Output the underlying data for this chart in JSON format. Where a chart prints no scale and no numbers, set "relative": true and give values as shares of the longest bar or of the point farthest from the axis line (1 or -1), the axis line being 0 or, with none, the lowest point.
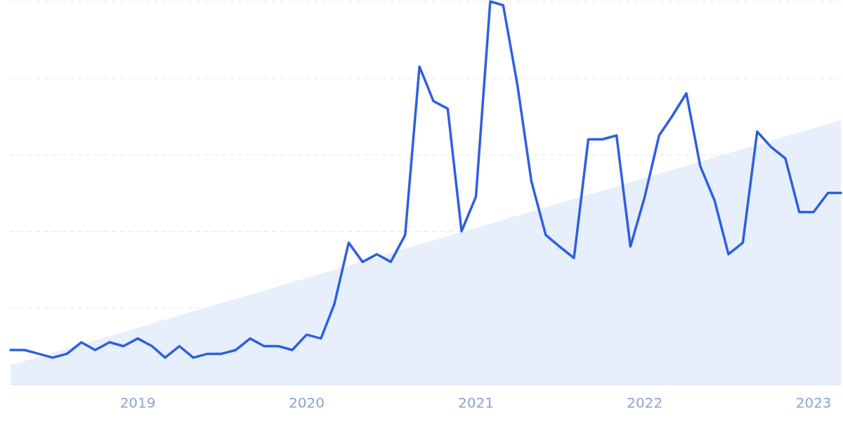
{
  "chart_data": {
    "type": "line",
    "relative": true,
    "grid": "y",
    "marker": "none",
    "line_style": "solid",
    "xlim": [
      "2018-04",
      "2023-03"
    ],
    "xticks": [
      "2019",
      "2020",
      "2021",
      "2022",
      "2023"
    ],
    "series": [
      {
        "type": "area",
        "color": "#e6effb",
        "x": [
          "2018-04",
          "2023-03"
        ],
        "values": [
          0.05,
          0.69
        ]
      },
      {
        "color": "#2f5fe0",
        "x": [
          "2018-04",
          "2018-05",
          "2018-06",
          "2018-07",
          "2018-08",
          "2018-09",
          "2018-10",
          "2018-11",
          "2018-12",
          "2019-01",
          "2019-02",
          "2019-03",
          "2019-04",
          "2019-05",
          "2019-06",
          "2019-07",
          "2019-08",
          "2019-09",
          "2019-10",
          "2019-11",
          "2019-12",
          "2020-01",
          "2020-02",
          "2020-03",
          "2020-04",
          "2020-05",
          "2020-06",
          "2020-07",
          "2020-08",
          "2020-09",
          "2020-10",
          "2020-11",
          "2020-12",
          "2021-01",
          "2021-02",
          "2021-03",
          "2021-04",
          "2021-05",
          "2021-06",
          "2021-07",
          "2021-08",
          "2021-09",
          "2021-10",
          "2021-11",
          "2021-12",
          "2022-01",
          "2022-02",
          "2022-03",
          "2022-04",
          "2022-05",
          "2022-06",
          "2022-07",
          "2022-08",
          "2022-09",
          "2022-10",
          "2022-11",
          "2022-12",
          "2023-01",
          "2023-02",
          "2023-03"
        ],
        "values": [
          0.09,
          0.09,
          0.08,
          0.07,
          0.08,
          0.11,
          0.09,
          0.11,
          0.1,
          0.12,
          0.1,
          0.07,
          0.1,
          0.07,
          0.08,
          0.08,
          0.09,
          0.12,
          0.1,
          0.1,
          0.09,
          0.13,
          0.12,
          0.21,
          0.37,
          0.32,
          0.34,
          0.32,
          0.39,
          0.83,
          0.74,
          0.72,
          0.4,
          0.49,
          1,
          0.99,
          0.78,
          0.53,
          0.39,
          0.36,
          0.33,
          0.64,
          0.64,
          0.65,
          0.36,
          0.49,
          0.65,
          0.7,
          0.76,
          0.57,
          0.48,
          0.34,
          0.37,
          0.66,
          0.62,
          0.59,
          0.45,
          0.45,
          0.5,
          0.5
        ]
      }
    ]
  }
}
